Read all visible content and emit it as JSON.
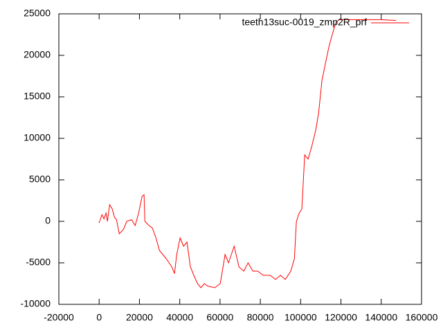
{
  "chart_data": {
    "type": "line",
    "series": [
      {
        "name": "teeth13suc-0019_zmp2R_prf",
        "color": "#ff0000",
        "x": [
          0,
          1400,
          2400,
          3400,
          4100,
          5200,
          6500,
          7600,
          8600,
          10000,
          12000,
          13700,
          16100,
          17900,
          19600,
          21300,
          22300,
          22700,
          24700,
          26400,
          28200,
          29900,
          31600,
          33300,
          36100,
          37400,
          38500,
          40200,
          41900,
          43600,
          45300,
          47000,
          48800,
          50500,
          52200,
          53900,
          57400,
          60100,
          62500,
          64200,
          67000,
          69400,
          71800,
          73900,
          76300,
          78700,
          81400,
          84800,
          87600,
          90000,
          92400,
          95100,
          96900,
          97900,
          99300,
          100600,
          102000,
          103700,
          105500,
          107500,
          108900,
          110600,
          112300,
          114000,
          115700,
          117500,
          119200,
          122600,
          129500,
          139800,
          147400
        ],
        "values": [
          -200,
          800,
          300,
          1000,
          0,
          2000,
          1500,
          500,
          200,
          -1500,
          -1000,
          0,
          200,
          -500,
          1000,
          3000,
          3200,
          0,
          -500,
          -800,
          -2000,
          -3500,
          -4000,
          -4500,
          -5500,
          -6300,
          -4000,
          -2000,
          -3000,
          -2500,
          -5500,
          -6500,
          -7500,
          -8000,
          -7500,
          -7800,
          -8000,
          -7500,
          -4000,
          -5000,
          -3000,
          -5500,
          -6000,
          -5000,
          -6000,
          -6000,
          -6500,
          -6500,
          -7000,
          -6500,
          -7000,
          -6000,
          -4500,
          0,
          1000,
          1500,
          8000,
          7500,
          9000,
          11000,
          13000,
          17000,
          19000,
          21000,
          22500,
          24000,
          24300,
          24300,
          24300,
          24300,
          24200
        ]
      }
    ],
    "xlim": [
      -20000,
      160000
    ],
    "xticks": [
      -20000,
      0,
      20000,
      40000,
      60000,
      80000,
      100000,
      120000,
      140000,
      160000
    ],
    "ylim": [
      -10000,
      25000
    ],
    "yticks": [
      -10000,
      -5000,
      0,
      5000,
      10000,
      15000,
      20000,
      25000
    ],
    "legend": "top-right"
  }
}
